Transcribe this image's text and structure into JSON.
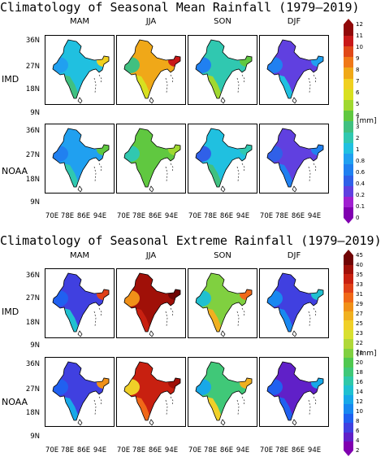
{
  "figure": {
    "top": {
      "title": "Climatology of Seasonal Mean Rainfall (1979–2019)",
      "unit": "[mm]",
      "seasons": [
        "MAM",
        "JJA",
        "SON",
        "DJF"
      ],
      "rows": [
        "IMD",
        "NOAA"
      ],
      "lat_ticks": [
        "36N",
        "27N",
        "18N",
        "9N"
      ],
      "lon_ticks": [
        "70E",
        "78E",
        "86E",
        "94E"
      ],
      "colorbar_ticks": [
        "12",
        "11",
        "10",
        "9",
        "8",
        "7",
        "6",
        "5",
        "4",
        "3",
        "2",
        "1",
        "0.8",
        "0.6",
        "0.4",
        "0.2",
        "0.1",
        "0"
      ]
    },
    "bottom": {
      "title": "Climatology of Seasonal Extreme Rainfall (1979–2019)",
      "unit": "[mm]",
      "seasons": [
        "MAM",
        "JJA",
        "SON",
        "DJF"
      ],
      "rows": [
        "IMD",
        "NOAA"
      ],
      "lat_ticks": [
        "36N",
        "27N",
        "18N",
        "9N"
      ],
      "lon_ticks": [
        "70E",
        "78E",
        "86E",
        "94E"
      ],
      "colorbar_ticks": [
        "45",
        "40",
        "35",
        "33",
        "31",
        "29",
        "27",
        "25",
        "23",
        "22",
        "21",
        "20",
        "18",
        "16",
        "14",
        "12",
        "10",
        "8",
        "6",
        "4",
        "2"
      ]
    }
  },
  "chart_data": [
    {
      "type": "heatmap",
      "title": "Climatology of Seasonal Mean Rainfall (1979–2019)",
      "unit": "[mm]",
      "rows": [
        "IMD",
        "NOAA"
      ],
      "columns": [
        "MAM",
        "JJA",
        "SON",
        "DJF"
      ],
      "xlabel": "",
      "ylabel": "",
      "x_ticks": [
        "70E",
        "78E",
        "86E",
        "94E"
      ],
      "y_ticks": [
        "36N",
        "27N",
        "18N",
        "9N"
      ],
      "colorbar_levels": [
        0,
        0.1,
        0.2,
        0.4,
        0.6,
        0.8,
        1,
        2,
        3,
        4,
        5,
        6,
        7,
        8,
        9,
        10,
        11,
        12
      ],
      "panels": [
        {
          "row": "IMD",
          "season": "MAM",
          "central_india": 1.5,
          "peninsula": 3,
          "northeast": 7,
          "northwest": 0.8
        },
        {
          "row": "IMD",
          "season": "JJA",
          "central_india": 8,
          "peninsula": 6,
          "northeast": 11,
          "northwest": 3
        },
        {
          "row": "IMD",
          "season": "SON",
          "central_india": 2,
          "peninsula": 5,
          "northeast": 4,
          "northwest": 0.6
        },
        {
          "row": "IMD",
          "season": "DJF",
          "central_india": 0.3,
          "peninsula": 1,
          "northeast": 0.8,
          "northwest": 0.6
        },
        {
          "row": "NOAA",
          "season": "MAM",
          "central_india": 0.8,
          "peninsula": 2,
          "northeast": 4,
          "northwest": 0.6
        },
        {
          "row": "NOAA",
          "season": "JJA",
          "central_india": 4,
          "peninsula": 4,
          "northeast": 5,
          "northwest": 2
        },
        {
          "row": "NOAA",
          "season": "SON",
          "central_india": 1,
          "peninsula": 3,
          "northeast": 2,
          "northwest": 0.4
        },
        {
          "row": "NOAA",
          "season": "DJF",
          "central_india": 0.2,
          "peninsula": 0.6,
          "northeast": 0.6,
          "northwest": 0.4
        }
      ]
    },
    {
      "type": "heatmap",
      "title": "Climatology of Seasonal Extreme Rainfall (1979–2019)",
      "unit": "[mm]",
      "rows": [
        "IMD",
        "NOAA"
      ],
      "columns": [
        "MAM",
        "JJA",
        "SON",
        "DJF"
      ],
      "xlabel": "",
      "ylabel": "",
      "x_ticks": [
        "70E",
        "78E",
        "86E",
        "94E"
      ],
      "y_ticks": [
        "36N",
        "27N",
        "18N",
        "9N"
      ],
      "colorbar_levels": [
        2,
        4,
        6,
        8,
        10,
        12,
        14,
        16,
        18,
        20,
        21,
        22,
        23,
        25,
        27,
        29,
        31,
        33,
        35,
        40,
        45
      ],
      "panels": [
        {
          "row": "IMD",
          "season": "MAM",
          "central_india": 6,
          "peninsula": 14,
          "northeast": 33,
          "northwest": 8
        },
        {
          "row": "IMD",
          "season": "JJA",
          "central_india": 40,
          "peninsula": 35,
          "northeast": 45,
          "northwest": 29
        },
        {
          "row": "IMD",
          "season": "SON",
          "central_india": 21,
          "peninsula": 27,
          "northeast": 31,
          "northwest": 14
        },
        {
          "row": "IMD",
          "season": "DJF",
          "central_india": 6,
          "peninsula": 10,
          "northeast": 14,
          "northwest": 10
        },
        {
          "row": "NOAA",
          "season": "MAM",
          "central_india": 6,
          "peninsula": 12,
          "northeast": 29,
          "northwest": 8
        },
        {
          "row": "NOAA",
          "season": "JJA",
          "central_india": 35,
          "peninsula": 31,
          "northeast": 40,
          "northwest": 25
        },
        {
          "row": "NOAA",
          "season": "SON",
          "central_india": 18,
          "peninsula": 25,
          "northeast": 27,
          "northwest": 12
        },
        {
          "row": "NOAA",
          "season": "DJF",
          "central_india": 4,
          "peninsula": 8,
          "northeast": 12,
          "northwest": 8
        }
      ]
    }
  ],
  "colors": {
    "mean_scale": [
      "#8000b0",
      "#a020d0",
      "#6040e0",
      "#3060e8",
      "#2080f0",
      "#20a0f0",
      "#20c0e0",
      "#30c8b0",
      "#40c080",
      "#60c840",
      "#a0d830",
      "#d8e020",
      "#f0d020",
      "#f0a818",
      "#f07818",
      "#e04818",
      "#c81818",
      "#900808"
    ],
    "extreme_scale": [
      "#8000b0",
      "#6020c8",
      "#4040e0",
      "#2060f0",
      "#1888f0",
      "#18a8e8",
      "#20c0d0",
      "#30c8a8",
      "#40c878",
      "#50c850",
      "#80d040",
      "#b0d838",
      "#d8e030",
      "#f0d028",
      "#f0b020",
      "#f09018",
      "#f06818",
      "#e04018",
      "#c82010",
      "#a01008",
      "#700404"
    ]
  }
}
